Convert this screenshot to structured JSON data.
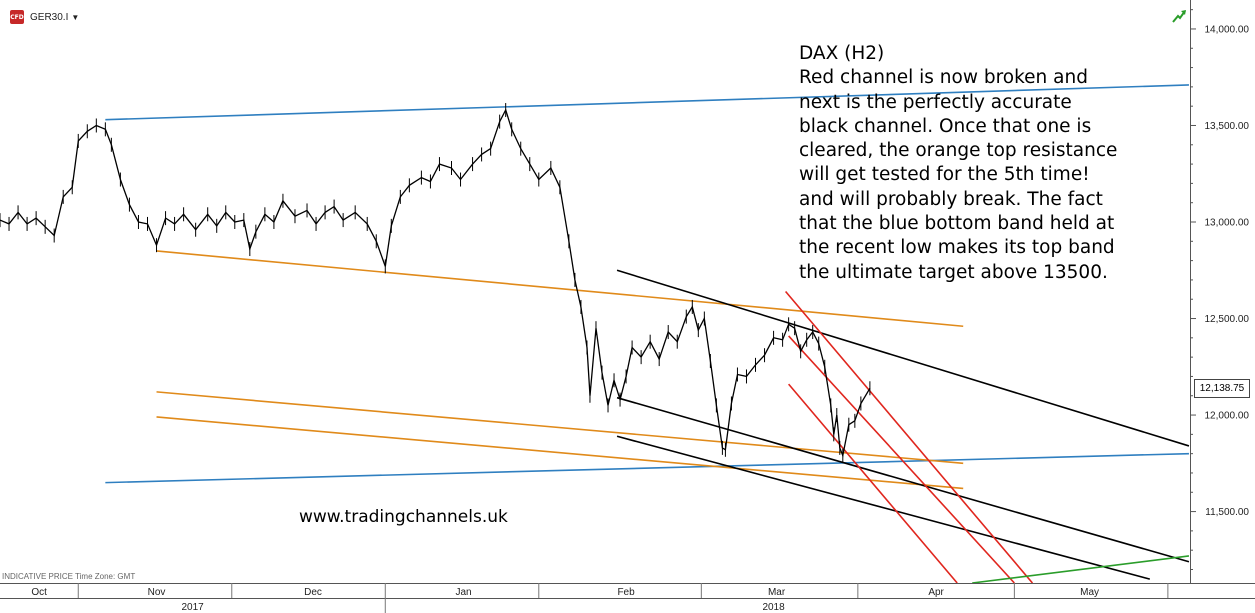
{
  "header": {
    "symbol": "GER30.I",
    "icon_text": "CFD"
  },
  "annotation": "DAX (H2)\nRed channel is now broken and\nnext is the perfectly accurate\nblack channel. Once that one is\ncleared, the orange top resistance\nwill get tested for the 5th time!\nand will probably break. The fact\nthat the blue bottom band held at\nthe recent low makes its top band\nthe ultimate target above 13500.",
  "watermark": "www.tradingchannels.uk",
  "footer_note": "INDICATIVE PRICE   Time Zone: GMT",
  "current_price_label": "12,138.75",
  "colors": {
    "price": "#000000",
    "blue": "#2f7fc0",
    "orange": "#e08a1a",
    "black": "#000000",
    "red": "#e0261e",
    "green": "#2a9d2a"
  },
  "chart_data": {
    "type": "line",
    "title": "DAX (H2)",
    "ylim": [
      11130,
      14150
    ],
    "y_ticks": [
      {
        "v": 14000,
        "label": "14,000.00"
      },
      {
        "v": 13500,
        "label": "13,500.00"
      },
      {
        "v": 13000,
        "label": "13,000.00"
      },
      {
        "v": 12500,
        "label": "12,500.00"
      },
      {
        "v": 12000,
        "label": "12,000.00"
      },
      {
        "v": 11500,
        "label": "11,500.00"
      }
    ],
    "x_ticks": [
      {
        "x": 1.3,
        "label": "Oct"
      },
      {
        "x": 5.2,
        "label": "Nov"
      },
      {
        "x": 10.4,
        "label": "Dec"
      },
      {
        "x": 15.4,
        "label": "Jan"
      },
      {
        "x": 20.8,
        "label": "Feb"
      },
      {
        "x": 25.8,
        "label": "Mar"
      },
      {
        "x": 31.1,
        "label": "Apr"
      },
      {
        "x": 36.2,
        "label": "May"
      }
    ],
    "x_separators": [
      2.6,
      7.7,
      12.8,
      17.9,
      23.3,
      28.5,
      33.7,
      38.8
    ],
    "years": [
      {
        "x": 6.4,
        "label": "2017"
      },
      {
        "x": 25.7,
        "label": "2018"
      }
    ],
    "year_separators": [
      12.8
    ],
    "last_price": 12138.75,
    "series": [
      {
        "points": [
          [
            0.0,
            13010
          ],
          [
            0.3,
            12990
          ],
          [
            0.6,
            13050
          ],
          [
            0.9,
            12990
          ],
          [
            1.2,
            13020
          ],
          [
            1.5,
            12975
          ],
          [
            1.8,
            12930
          ],
          [
            2.1,
            13130
          ],
          [
            2.4,
            13180
          ],
          [
            2.6,
            13420
          ],
          [
            2.9,
            13470
          ],
          [
            3.2,
            13500
          ],
          [
            3.5,
            13480
          ],
          [
            3.7,
            13400
          ],
          [
            4.0,
            13220
          ],
          [
            4.3,
            13090
          ],
          [
            4.6,
            13000
          ],
          [
            4.9,
            12990
          ],
          [
            5.2,
            12880
          ],
          [
            5.5,
            13020
          ],
          [
            5.8,
            12990
          ],
          [
            6.1,
            13040
          ],
          [
            6.5,
            12960
          ],
          [
            6.9,
            13040
          ],
          [
            7.2,
            12980
          ],
          [
            7.5,
            13050
          ],
          [
            7.8,
            13000
          ],
          [
            8.1,
            13010
          ],
          [
            8.3,
            12860
          ],
          [
            8.5,
            12950
          ],
          [
            8.8,
            13040
          ],
          [
            9.1,
            13000
          ],
          [
            9.4,
            13110
          ],
          [
            9.8,
            13030
          ],
          [
            10.2,
            13060
          ],
          [
            10.5,
            12990
          ],
          [
            10.8,
            13050
          ],
          [
            11.1,
            13080
          ],
          [
            11.4,
            13010
          ],
          [
            11.8,
            13050
          ],
          [
            12.2,
            12990
          ],
          [
            12.5,
            12900
          ],
          [
            12.8,
            12770
          ],
          [
            13.0,
            12980
          ],
          [
            13.3,
            13130
          ],
          [
            13.6,
            13190
          ],
          [
            14.0,
            13230
          ],
          [
            14.3,
            13210
          ],
          [
            14.6,
            13300
          ],
          [
            15.0,
            13280
          ],
          [
            15.3,
            13220
          ],
          [
            15.7,
            13300
          ],
          [
            16.0,
            13350
          ],
          [
            16.3,
            13380
          ],
          [
            16.6,
            13520
          ],
          [
            16.8,
            13580
          ],
          [
            17.0,
            13480
          ],
          [
            17.3,
            13380
          ],
          [
            17.6,
            13300
          ],
          [
            17.9,
            13220
          ],
          [
            18.3,
            13280
          ],
          [
            18.6,
            13180
          ],
          [
            18.9,
            12900
          ],
          [
            19.1,
            12700
          ],
          [
            19.3,
            12560
          ],
          [
            19.5,
            12350
          ],
          [
            19.6,
            12100
          ],
          [
            19.8,
            12450
          ],
          [
            20.0,
            12220
          ],
          [
            20.2,
            12050
          ],
          [
            20.4,
            12180
          ],
          [
            20.6,
            12080
          ],
          [
            20.8,
            12200
          ],
          [
            21.0,
            12350
          ],
          [
            21.3,
            12300
          ],
          [
            21.6,
            12380
          ],
          [
            21.9,
            12290
          ],
          [
            22.2,
            12430
          ],
          [
            22.5,
            12380
          ],
          [
            22.8,
            12510
          ],
          [
            23.0,
            12560
          ],
          [
            23.2,
            12440
          ],
          [
            23.4,
            12500
          ],
          [
            23.6,
            12280
          ],
          [
            23.8,
            12050
          ],
          [
            24.0,
            11830
          ],
          [
            24.1,
            11820
          ],
          [
            24.3,
            12060
          ],
          [
            24.5,
            12210
          ],
          [
            24.8,
            12200
          ],
          [
            25.1,
            12260
          ],
          [
            25.4,
            12310
          ],
          [
            25.7,
            12400
          ],
          [
            26.0,
            12390
          ],
          [
            26.2,
            12470
          ],
          [
            26.4,
            12450
          ],
          [
            26.6,
            12330
          ],
          [
            26.8,
            12390
          ],
          [
            27.0,
            12430
          ],
          [
            27.2,
            12370
          ],
          [
            27.4,
            12250
          ],
          [
            27.6,
            12050
          ],
          [
            27.7,
            11900
          ],
          [
            27.8,
            12000
          ],
          [
            27.9,
            11830
          ],
          [
            28.0,
            11790
          ],
          [
            28.2,
            11950
          ],
          [
            28.4,
            11970
          ],
          [
            28.6,
            12060
          ],
          [
            28.9,
            12138.75
          ]
        ]
      }
    ],
    "trendlines": [
      {
        "color": "blue",
        "p1": [
          3.5,
          13530
        ],
        "p2": [
          39.5,
          13710
        ]
      },
      {
        "color": "blue",
        "p1": [
          3.5,
          11650
        ],
        "p2": [
          39.5,
          11800
        ]
      },
      {
        "color": "orange",
        "p1": [
          5.2,
          12850
        ],
        "p2": [
          32.0,
          12460
        ]
      },
      {
        "color": "orange",
        "p1": [
          5.2,
          12120
        ],
        "p2": [
          32.0,
          11750
        ]
      },
      {
        "color": "orange",
        "p1": [
          5.2,
          11990
        ],
        "p2": [
          32.0,
          11620
        ]
      },
      {
        "color": "black",
        "p1": [
          20.5,
          12750
        ],
        "p2": [
          39.5,
          11840
        ]
      },
      {
        "color": "black",
        "p1": [
          20.5,
          12090
        ],
        "p2": [
          39.5,
          11240
        ]
      },
      {
        "color": "black",
        "p1": [
          20.5,
          11890
        ],
        "p2": [
          38.2,
          11150
        ]
      },
      {
        "color": "red",
        "p1": [
          26.1,
          12640
        ],
        "p2": [
          34.3,
          11130
        ]
      },
      {
        "color": "red",
        "p1": [
          26.2,
          12410
        ],
        "p2": [
          33.7,
          11130
        ]
      },
      {
        "color": "red",
        "p1": [
          26.2,
          12160
        ],
        "p2": [
          31.8,
          11130
        ]
      },
      {
        "color": "green",
        "p1": [
          32.3,
          11130
        ],
        "p2": [
          39.5,
          11270
        ]
      }
    ]
  }
}
